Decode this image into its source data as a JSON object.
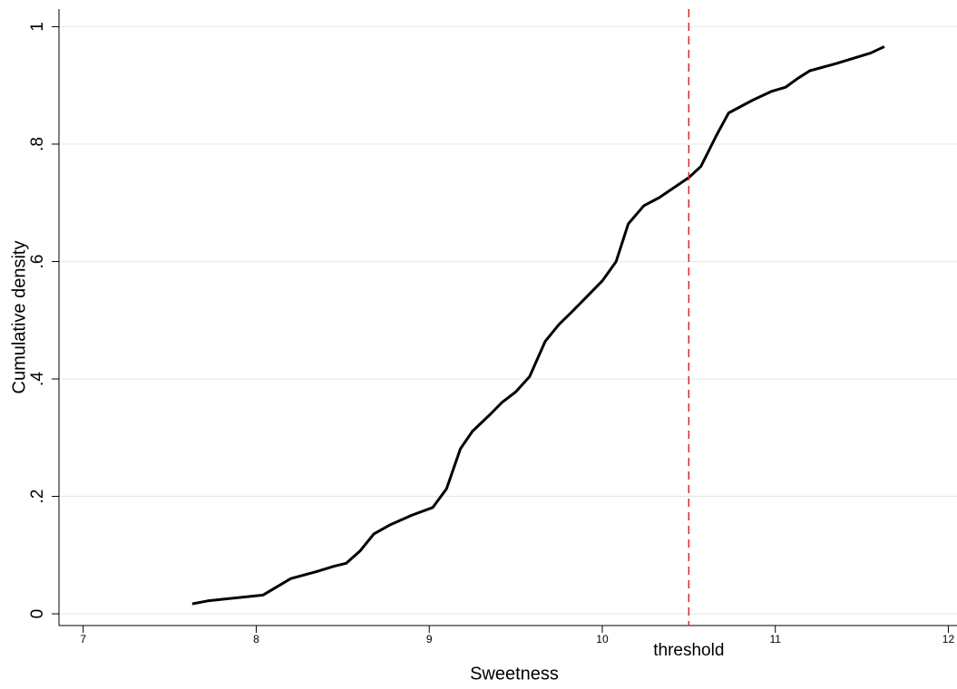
{
  "chart_data": {
    "type": "line",
    "x_label": "Sweetness",
    "y_label": "Cumulative density",
    "x": [
      7.63,
      7.72,
      8.04,
      8.2,
      8.35,
      8.45,
      8.52,
      8.6,
      8.68,
      8.77,
      8.9,
      9.02,
      9.1,
      9.18,
      9.25,
      9.35,
      9.42,
      9.5,
      9.58,
      9.67,
      9.75,
      9.82,
      9.9,
      10,
      10.08,
      10.15,
      10.24,
      10.33,
      10.5,
      10.57,
      10.66,
      10.73,
      10.87,
      10.98,
      11.06,
      11.13,
      11.2,
      11.35,
      11.55,
      11.63
    ],
    "values": [
      0.017,
      0.022,
      0.032,
      0.06,
      0.072,
      0.081,
      0.086,
      0.107,
      0.136,
      0.151,
      0.168,
      0.181,
      0.213,
      0.281,
      0.311,
      0.339,
      0.36,
      0.378,
      0.404,
      0.464,
      0.493,
      0.513,
      0.537,
      0.567,
      0.6,
      0.664,
      0.695,
      0.709,
      0.743,
      0.762,
      0.815,
      0.853,
      0.875,
      0.89,
      0.897,
      0.912,
      0.925,
      0.937,
      0.955,
      0.966
    ],
    "color": "#000000",
    "xlim": [
      6.86,
      12.05
    ],
    "ylim": [
      -0.02,
      1.03
    ],
    "xticks": [
      7,
      8,
      9,
      10,
      11,
      12
    ],
    "yticks": [
      0,
      {
        "value": 0.2,
        "label": ".2"
      },
      {
        "value": 0.4,
        "label": ".4"
      },
      {
        "value": 0.6,
        "label": ".6"
      },
      {
        "value": 0.8,
        "label": ".8"
      },
      1
    ],
    "grid": true,
    "reference_line": {
      "value": 10.5,
      "label": "threshold",
      "color": "#d62728"
    }
  }
}
